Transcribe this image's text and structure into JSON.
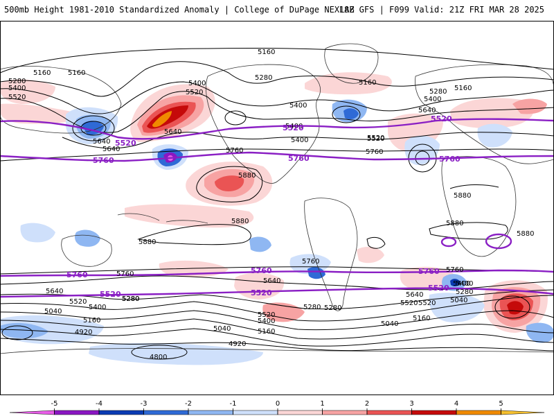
{
  "header": {
    "title": "500mb Height 1981-2010 Standardized Anomaly | College of DuPage NEXLAB",
    "run_info": "18Z GFS | F099 Valid: 21Z FRI MAR 28 2025"
  },
  "map": {
    "contour_labels_black": [
      "5160",
      "5160",
      "5160",
      "5280",
      "5400",
      "5520",
      "5400",
      "5520",
      "5280",
      "5160",
      "5640",
      "5640",
      "5400",
      "5640",
      "5520",
      "5280",
      "5400",
      "5160",
      "5640",
      "5400",
      "5760",
      "5880",
      "5880",
      "5880",
      "5880",
      "5880",
      "5760",
      "5760",
      "5640",
      "5520",
      "5280",
      "5400",
      "5520",
      "5400",
      "5520",
      "5760",
      "5640",
      "5520",
      "5400",
      "5040",
      "5280",
      "5160",
      "5040",
      "5160",
      "5040",
      "4920",
      "4920",
      "4800",
      "5280",
      "5280",
      "5400",
      "5520",
      "5760",
      "5400",
      "5280",
      "5040",
      "5160",
      "5280",
      "5880",
      "5640"
    ],
    "contour_labels_purple": [
      "5520",
      "5760",
      "5520",
      "5520",
      "5760",
      "5760",
      "5760",
      "5520",
      "5760",
      "5760",
      "5520",
      "5520"
    ],
    "colors": {
      "purple_contour": "#8a1fc4",
      "black_contour": "#000000",
      "coast": "#333333",
      "background": "#ffffff"
    }
  },
  "colorbar": {
    "ticks": [
      "-5",
      "-4",
      "-3",
      "-2",
      "-1",
      "0",
      "1",
      "2",
      "3",
      "4",
      "5"
    ],
    "colors": [
      "#e85ee8",
      "#8a17c2",
      "#0a3bb3",
      "#2f6ad6",
      "#8fb7f2",
      "#cfe0fb",
      "#fbd6d6",
      "#f7a3a3",
      "#ea5454",
      "#c50a0a",
      "#f08a00",
      "#f5c030"
    ]
  }
}
